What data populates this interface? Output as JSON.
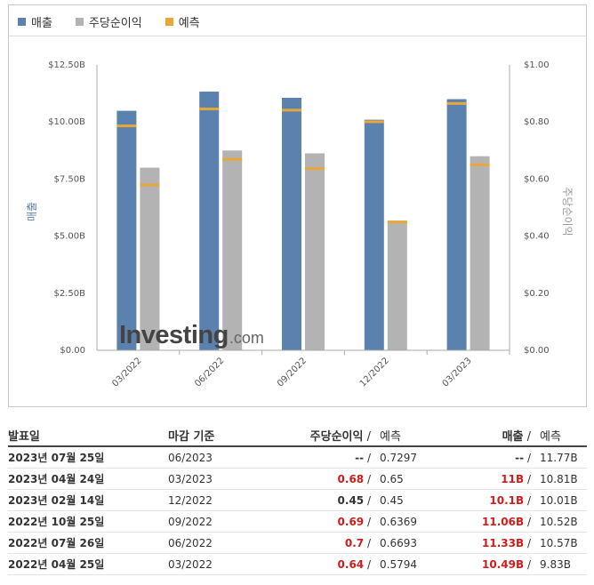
{
  "legend": [
    {
      "label": "매출",
      "color": "#5b82ae"
    },
    {
      "label": "주당순이익",
      "color": "#b3b3b3"
    },
    {
      "label": "예측",
      "color": "#e8a838"
    }
  ],
  "chart_data": {
    "type": "bar",
    "categories": [
      "03/2022",
      "06/2022",
      "09/2022",
      "12/2022",
      "03/2023"
    ],
    "series": [
      {
        "name": "매출",
        "axis": "left",
        "color": "#5b82ae",
        "values": [
          10.49,
          11.33,
          11.06,
          10.1,
          11.0
        ]
      },
      {
        "name": "주당순이익",
        "axis": "right",
        "color": "#b3b3b3",
        "values": [
          0.64,
          0.7,
          0.69,
          0.45,
          0.68
        ]
      }
    ],
    "forecast": {
      "name": "예측",
      "color": "#e8a838",
      "revenue": [
        9.83,
        10.57,
        10.52,
        10.01,
        10.81
      ],
      "eps": [
        0.5794,
        0.6693,
        0.6369,
        0.45,
        0.65
      ]
    },
    "left_axis": {
      "label": "매출",
      "ticks": [
        "$0.00",
        "$2.50B",
        "$5.00B",
        "$7.50B",
        "$10.00B",
        "$12.50B"
      ],
      "range": [
        0,
        12.5
      ]
    },
    "right_axis": {
      "label": "주당순이익",
      "ticks": [
        "$0.00",
        "$0.20",
        "$0.40",
        "$0.60",
        "$0.80",
        "$1.00"
      ],
      "range": [
        0,
        1.0
      ]
    },
    "grid": false,
    "legend_position": "top-left"
  },
  "watermark": {
    "main": "Investing",
    "suffix": ".com"
  },
  "table": {
    "headers": {
      "date": "발표일",
      "period": "마감 기준",
      "eps": "주당순이익",
      "eps_slash": " /",
      "eps_forecast": "예측",
      "revenue": "매출",
      "revenue_slash": " /",
      "revenue_forecast": "예측"
    },
    "rows": [
      {
        "date": "2023년 07월 25일",
        "period": "06/2023",
        "eps": "--",
        "eps_color": "normal",
        "eps_forecast": "0.7297",
        "revenue": "--",
        "revenue_color": "normal",
        "revenue_forecast": "11.77B"
      },
      {
        "date": "2023년 04월 24일",
        "period": "03/2023",
        "eps": "0.68",
        "eps_color": "red",
        "eps_forecast": "0.65",
        "revenue": "11B",
        "revenue_color": "red",
        "revenue_forecast": "10.81B"
      },
      {
        "date": "2023년 02월 14일",
        "period": "12/2022",
        "eps": "0.45",
        "eps_color": "normal",
        "eps_forecast": "0.45",
        "revenue": "10.1B",
        "revenue_color": "red",
        "revenue_forecast": "10.01B"
      },
      {
        "date": "2022년 10월 25일",
        "period": "09/2022",
        "eps": "0.69",
        "eps_color": "red",
        "eps_forecast": "0.6369",
        "revenue": "11.06B",
        "revenue_color": "red",
        "revenue_forecast": "10.52B"
      },
      {
        "date": "2022년 07월 26일",
        "period": "06/2022",
        "eps": "0.7",
        "eps_color": "red",
        "eps_forecast": "0.6693",
        "revenue": "11.33B",
        "revenue_color": "red",
        "revenue_forecast": "10.57B"
      },
      {
        "date": "2022년 04월 25일",
        "period": "03/2022",
        "eps": "0.64",
        "eps_color": "red",
        "eps_forecast": "0.5794",
        "revenue": "10.49B",
        "revenue_color": "red",
        "revenue_forecast": "9.83B"
      }
    ]
  }
}
